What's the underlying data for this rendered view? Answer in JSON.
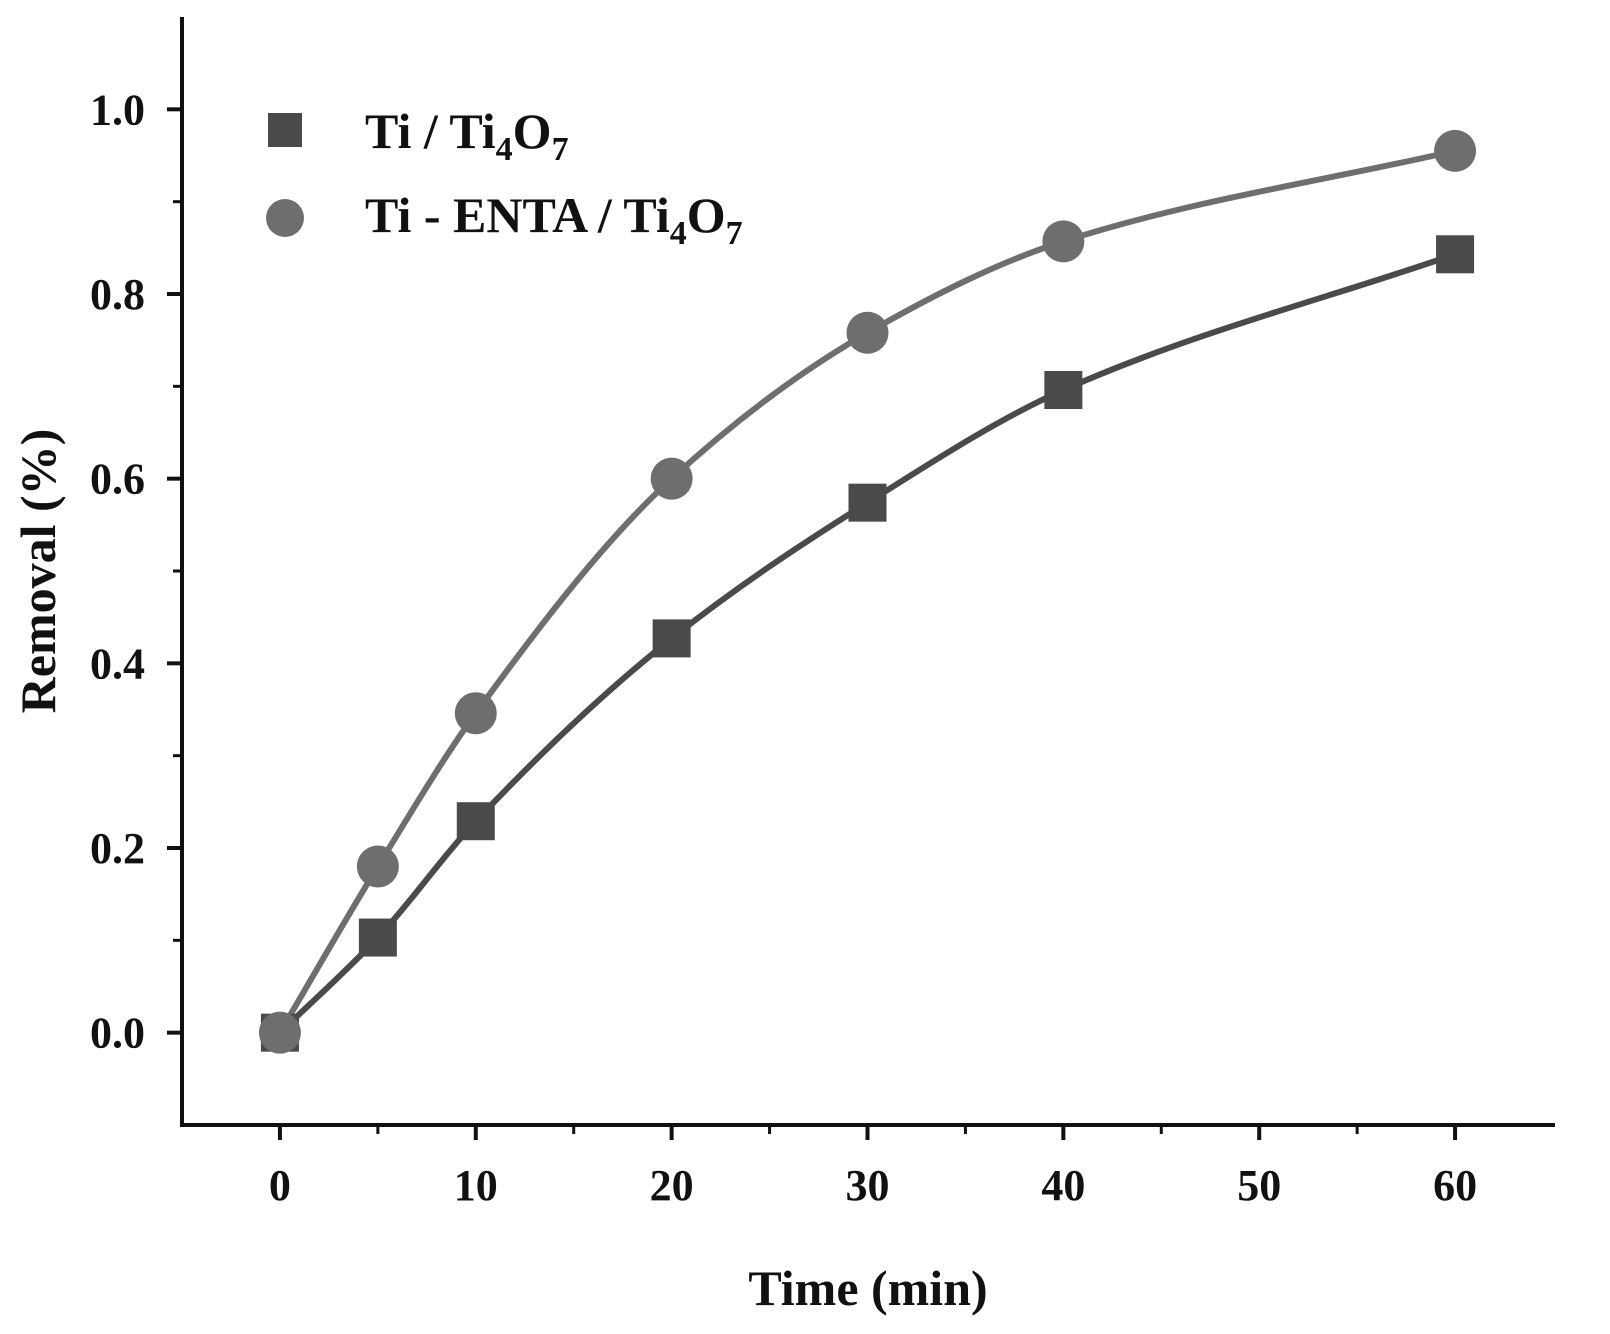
{
  "chart_data": {
    "type": "line",
    "xlabel": "Time (min)",
    "ylabel": "Removal (%)",
    "xlim": [
      -5,
      65
    ],
    "ylim": [
      -0.1,
      1.1
    ],
    "xticks": [
      0,
      10,
      20,
      30,
      40,
      50,
      60
    ],
    "xtick_labels": [
      "0",
      "10",
      "20",
      "30",
      "40",
      "50",
      "60"
    ],
    "yticks": [
      0.0,
      0.2,
      0.4,
      0.6,
      0.8,
      1.0
    ],
    "ytick_labels": [
      "0.0",
      "0.2",
      "0.4",
      "0.6",
      "0.8",
      "1.0"
    ],
    "legend_position": "top-left",
    "series": [
      {
        "name": "Ti / Ti4O7",
        "legend_main": "Ti / Ti",
        "legend_sub1": "4",
        "legend_mid": "O",
        "legend_sub2": "7",
        "marker": "square",
        "color": "#4a4a4a",
        "x": [
          0,
          5,
          10,
          20,
          30,
          40,
          60
        ],
        "y": [
          0.0,
          0.103,
          0.229,
          0.427,
          0.574,
          0.696,
          0.843
        ]
      },
      {
        "name": "Ti - ENTA / Ti4O7",
        "legend_main": "Ti - ENTA / Ti",
        "legend_sub1": "4",
        "legend_mid": "O",
        "legend_sub2": "7",
        "marker": "circle",
        "color": "#6e6e6e",
        "x": [
          0,
          5,
          10,
          20,
          30,
          40,
          60
        ],
        "y": [
          0.0,
          0.18,
          0.346,
          0.6,
          0.758,
          0.857,
          0.955
        ]
      }
    ]
  }
}
